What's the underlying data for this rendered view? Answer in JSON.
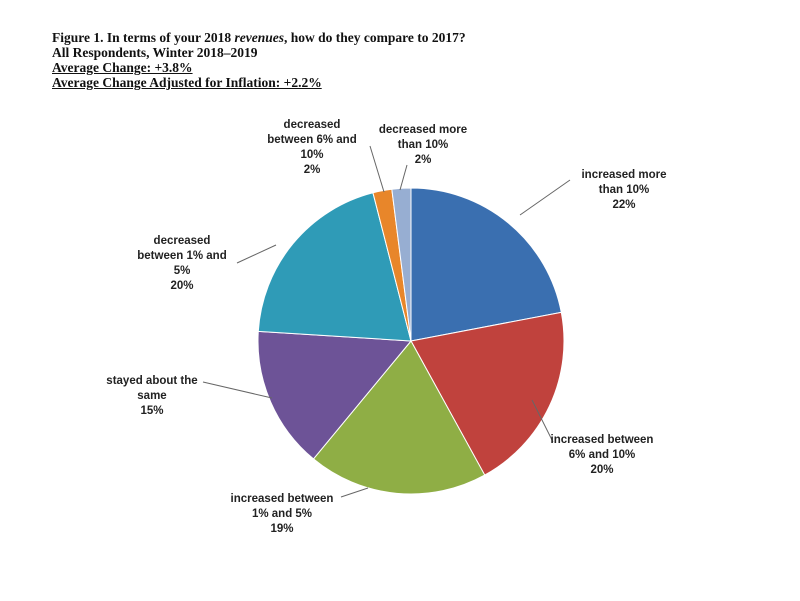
{
  "header": {
    "line1_prefix": "Figure 1. In terms of your 2018 ",
    "line1_em": "revenues",
    "line1_suffix": ", how do they compare to 2017?",
    "line2": "All Respondents, Winter 2018–2019",
    "line3": "Average Change: +3.8%",
    "line4": "Average Change Adjusted for Inflation: +2.2%"
  },
  "chart_data": {
    "type": "pie",
    "title": "Figure 1. In terms of your 2018 revenues, how do they compare to 2017?",
    "subtitle": "All Respondents, Winter 2018–2019",
    "slices": [
      {
        "label": "increased more than 10%",
        "value": 22,
        "value_label": "22%",
        "color": "#3a6fb0"
      },
      {
        "label": "increased between 6% and 10%",
        "value": 20,
        "value_label": "20%",
        "color": "#c0423d"
      },
      {
        "label": "increased between 1% and 5%",
        "value": 19,
        "value_label": "19%",
        "color": "#8fae45"
      },
      {
        "label": "stayed about the same",
        "value": 15,
        "value_label": "15%",
        "color": "#6d5397"
      },
      {
        "label": "decreased between 1% and 5%",
        "value": 20,
        "value_label": "20%",
        "color": "#2f9bb7"
      },
      {
        "label": "decreased between 6% and 10%",
        "value": 2,
        "value_label": "2%",
        "color": "#e8862a"
      },
      {
        "label": "decreased more than 10%",
        "value": 2,
        "value_label": "2%",
        "color": "#97aed2"
      }
    ],
    "legend": "none"
  }
}
